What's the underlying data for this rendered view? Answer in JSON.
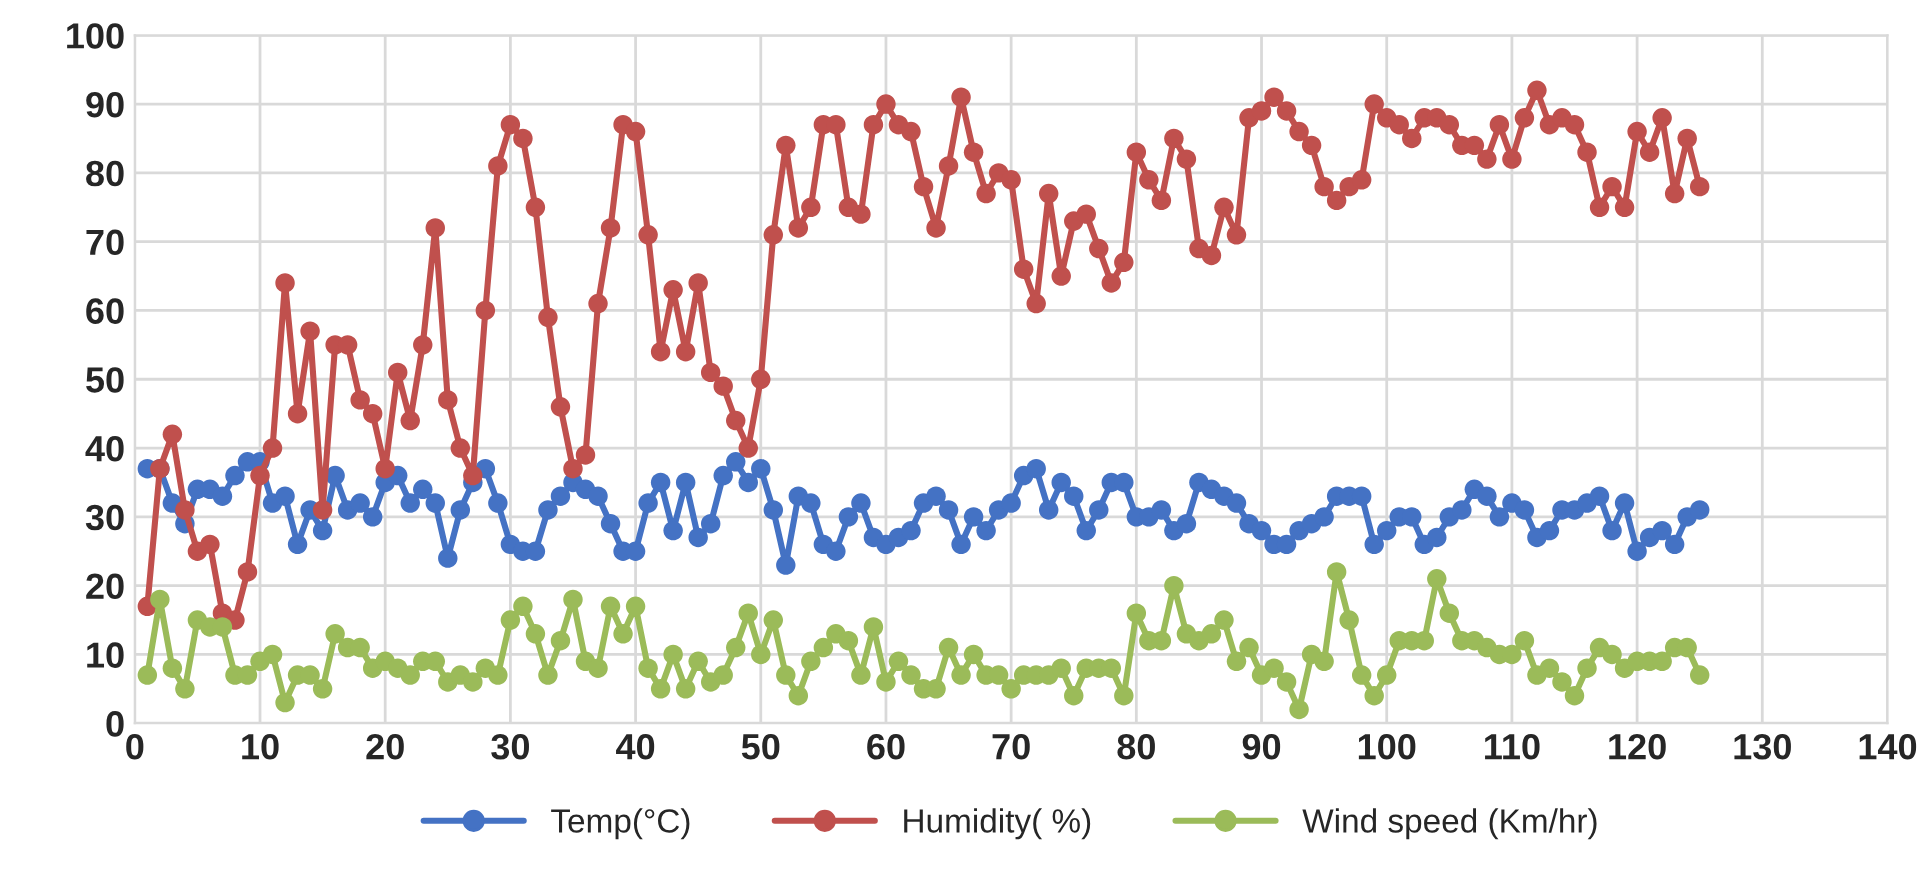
{
  "chart_data": {
    "type": "line",
    "x": [
      1,
      2,
      3,
      4,
      5,
      6,
      7,
      8,
      9,
      10,
      11,
      12,
      13,
      14,
      15,
      16,
      17,
      18,
      19,
      20,
      21,
      22,
      23,
      24,
      25,
      26,
      27,
      28,
      29,
      30,
      31,
      32,
      33,
      34,
      35,
      36,
      37,
      38,
      39,
      40,
      41,
      42,
      43,
      44,
      45,
      46,
      47,
      48,
      49,
      50,
      51,
      52,
      53,
      54,
      55,
      56,
      57,
      58,
      59,
      60,
      61,
      62,
      63,
      64,
      65,
      66,
      67,
      68,
      69,
      70,
      71,
      72,
      73,
      74,
      75,
      76,
      77,
      78,
      79,
      80,
      81,
      82,
      83,
      84,
      85,
      86,
      87,
      88,
      89,
      90,
      91,
      92,
      93,
      94,
      95,
      96,
      97,
      98,
      99,
      100,
      101,
      102,
      103,
      104,
      105,
      106,
      107,
      108,
      109,
      110,
      111,
      112,
      113,
      114,
      115,
      116,
      117,
      118,
      119,
      120,
      121,
      122,
      123,
      124,
      125
    ],
    "series": [
      {
        "name": "Temp(°C)",
        "color": "#4472c4",
        "values": [
          37,
          37,
          32,
          29,
          34,
          34,
          33,
          36,
          38,
          38,
          32,
          33,
          26,
          31,
          28,
          36,
          31,
          32,
          30,
          35,
          36,
          32,
          34,
          32,
          24,
          31,
          35,
          37,
          32,
          26,
          25,
          25,
          31,
          33,
          35,
          34,
          33,
          29,
          25,
          25,
          32,
          35,
          28,
          35,
          27,
          29,
          36,
          38,
          35,
          37,
          31,
          23,
          33,
          32,
          26,
          25,
          30,
          32,
          27,
          26,
          27,
          28,
          32,
          33,
          31,
          26,
          30,
          28,
          31,
          32,
          36,
          37,
          31,
          35,
          33,
          28,
          31,
          35,
          35,
          30,
          30,
          31,
          28,
          29,
          35,
          34,
          33,
          32,
          29,
          28,
          26,
          26,
          28,
          29,
          30,
          33,
          33,
          33,
          26,
          28,
          30,
          30,
          26,
          27,
          30,
          31,
          34,
          33,
          30,
          32,
          31,
          27,
          28,
          31,
          31,
          32,
          33,
          28,
          32,
          25,
          27,
          28,
          26,
          30,
          31
        ]
      },
      {
        "name": "Humidity( %)",
        "color": "#c0504d",
        "values": [
          17,
          37,
          42,
          31,
          25,
          26,
          16,
          15,
          22,
          36,
          40,
          64,
          45,
          57,
          31,
          55,
          55,
          47,
          45,
          37,
          51,
          44,
          55,
          72,
          47,
          40,
          36,
          60,
          81,
          87,
          85,
          75,
          59,
          46,
          37,
          39,
          61,
          72,
          87,
          86,
          71,
          54,
          63,
          54,
          64,
          51,
          49,
          44,
          40,
          50,
          71,
          84,
          72,
          75,
          87,
          87,
          75,
          74,
          87,
          90,
          87,
          86,
          78,
          72,
          81,
          91,
          83,
          77,
          80,
          79,
          66,
          61,
          77,
          65,
          73,
          74,
          69,
          64,
          67,
          83,
          79,
          76,
          85,
          82,
          69,
          68,
          75,
          71,
          88,
          89,
          91,
          89,
          86,
          84,
          78,
          76,
          78,
          79,
          90,
          88,
          87,
          85,
          88,
          88,
          87,
          84,
          84,
          82,
          87,
          82,
          88,
          92,
          87,
          88,
          87,
          83,
          75,
          78,
          75,
          86,
          83,
          88,
          77,
          85,
          78
        ]
      },
      {
        "name": "Wind speed (Km/hr)",
        "color": "#9bbb59",
        "values": [
          7,
          18,
          8,
          5,
          15,
          14,
          14,
          7,
          7,
          9,
          10,
          3,
          7,
          7,
          5,
          13,
          11,
          11,
          8,
          9,
          8,
          7,
          9,
          9,
          6,
          7,
          6,
          8,
          7,
          15,
          17,
          13,
          7,
          12,
          18,
          9,
          8,
          17,
          13,
          17,
          8,
          5,
          10,
          5,
          9,
          6,
          7,
          11,
          16,
          10,
          15,
          7,
          4,
          9,
          11,
          13,
          12,
          7,
          14,
          6,
          9,
          7,
          5,
          5,
          11,
          7,
          10,
          7,
          7,
          5,
          7,
          7,
          7,
          8,
          4,
          8,
          8,
          8,
          4,
          16,
          12,
          12,
          20,
          13,
          12,
          13,
          15,
          9,
          11,
          7,
          8,
          6,
          2,
          10,
          9,
          22,
          15,
          7,
          4,
          7,
          12,
          12,
          12,
          21,
          16,
          12,
          12,
          11,
          10,
          10,
          12,
          7,
          8,
          6,
          4,
          8,
          11,
          10,
          8,
          9,
          9,
          9,
          11,
          11,
          7
        ]
      }
    ],
    "xlim": [
      0,
      140
    ],
    "xticks": [
      0,
      10,
      20,
      30,
      40,
      50,
      60,
      70,
      80,
      90,
      100,
      110,
      120,
      130,
      140
    ],
    "ylim": [
      0,
      100
    ],
    "yticks": [
      0,
      10,
      20,
      30,
      40,
      50,
      60,
      70,
      80,
      90,
      100
    ],
    "grid": true,
    "legend": "bottom",
    "marker": "circle",
    "line_style": "solid"
  }
}
